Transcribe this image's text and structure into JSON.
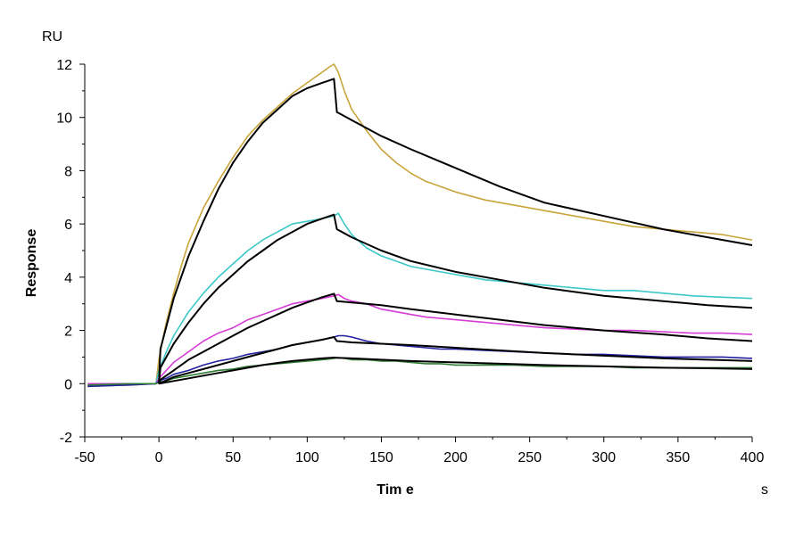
{
  "chart_data": {
    "type": "line",
    "xlabel": "Tim e",
    "ylabel": "Response",
    "x_unit": "s",
    "y_unit": "RU",
    "xlim": [
      -50,
      400
    ],
    "ylim": [
      -2,
      12
    ],
    "x_ticks": [
      -50,
      0,
      50,
      100,
      150,
      200,
      250,
      300,
      350,
      400
    ],
    "y_ticks": [
      -2,
      0,
      2,
      4,
      6,
      8,
      10,
      12
    ],
    "x_tick_labels": [
      "-50",
      "0",
      "50",
      "100",
      "150",
      "200",
      "250",
      "300",
      "350",
      "400"
    ],
    "y_tick_labels": [
      "-2",
      "0",
      "2",
      "4",
      "6",
      "8",
      "10",
      "12"
    ],
    "grid": false,
    "legend": "none",
    "colors": {
      "series_1": "#C8A43A",
      "series_2": "#3CC8C8",
      "series_3": "#D63CD6",
      "series_4": "#2020A0",
      "series_5": "#2E7D32",
      "fit": "#000000"
    },
    "series": [
      {
        "role": "measured",
        "color": "#C8A43A",
        "x": [
          -48,
          -20,
          -2,
          0,
          2,
          5,
          10,
          15,
          20,
          30,
          40,
          50,
          60,
          70,
          80,
          90,
          100,
          110,
          115,
          118,
          121,
          125,
          130,
          140,
          150,
          160,
          170,
          180,
          190,
          200,
          220,
          240,
          260,
          280,
          300,
          320,
          340,
          360,
          380,
          400
        ],
        "y": [
          -0.1,
          -0.05,
          0,
          0.9,
          1.5,
          2.3,
          3.4,
          4.4,
          5.3,
          6.6,
          7.6,
          8.5,
          9.3,
          9.9,
          10.4,
          10.9,
          11.3,
          11.7,
          11.9,
          12.0,
          11.7,
          11.0,
          10.3,
          9.5,
          8.8,
          8.3,
          7.9,
          7.6,
          7.4,
          7.2,
          6.9,
          6.7,
          6.5,
          6.3,
          6.1,
          5.9,
          5.8,
          5.7,
          5.6,
          5.4
        ]
      },
      {
        "role": "measured",
        "color": "#3CC8C8",
        "x": [
          -48,
          -20,
          -2,
          0,
          5,
          10,
          20,
          30,
          40,
          50,
          60,
          70,
          80,
          90,
          100,
          110,
          118,
          121,
          125,
          130,
          140,
          150,
          160,
          170,
          180,
          190,
          200,
          220,
          240,
          260,
          280,
          300,
          320,
          340,
          360,
          380,
          400
        ],
        "y": [
          -0.05,
          0,
          0,
          0.5,
          1.2,
          1.8,
          2.7,
          3.4,
          4.0,
          4.5,
          5.0,
          5.4,
          5.7,
          6.0,
          6.1,
          6.2,
          6.3,
          6.4,
          6.0,
          5.6,
          5.1,
          4.8,
          4.6,
          4.4,
          4.3,
          4.2,
          4.1,
          3.9,
          3.8,
          3.7,
          3.6,
          3.5,
          3.5,
          3.4,
          3.3,
          3.25,
          3.2
        ]
      },
      {
        "role": "measured",
        "color": "#D63CD6",
        "x": [
          -48,
          -20,
          -2,
          0,
          5,
          10,
          20,
          30,
          40,
          50,
          60,
          70,
          80,
          90,
          100,
          110,
          118,
          121,
          125,
          130,
          140,
          150,
          160,
          170,
          180,
          190,
          200,
          220,
          240,
          260,
          280,
          300,
          320,
          340,
          360,
          380,
          400
        ],
        "y": [
          0,
          0,
          0,
          0.2,
          0.5,
          0.8,
          1.2,
          1.6,
          1.9,
          2.1,
          2.4,
          2.6,
          2.8,
          3.0,
          3.1,
          3.2,
          3.3,
          3.35,
          3.2,
          3.1,
          3.0,
          2.8,
          2.7,
          2.6,
          2.5,
          2.45,
          2.4,
          2.3,
          2.2,
          2.1,
          2.05,
          2.0,
          2.0,
          1.95,
          1.9,
          1.9,
          1.85
        ]
      },
      {
        "role": "measured",
        "color": "#2020A0",
        "x": [
          -48,
          -20,
          -2,
          0,
          5,
          10,
          20,
          30,
          40,
          50,
          60,
          70,
          80,
          90,
          100,
          110,
          118,
          121,
          125,
          130,
          140,
          150,
          160,
          170,
          180,
          190,
          200,
          220,
          240,
          260,
          280,
          300,
          320,
          340,
          360,
          380,
          400
        ],
        "y": [
          -0.1,
          -0.05,
          0,
          0.1,
          0.2,
          0.35,
          0.5,
          0.7,
          0.85,
          0.95,
          1.1,
          1.2,
          1.3,
          1.45,
          1.55,
          1.65,
          1.75,
          1.8,
          1.8,
          1.75,
          1.6,
          1.5,
          1.45,
          1.4,
          1.35,
          1.3,
          1.3,
          1.25,
          1.2,
          1.15,
          1.1,
          1.1,
          1.05,
          1.0,
          1.0,
          1.0,
          0.95
        ]
      },
      {
        "role": "measured",
        "color": "#2E7D32",
        "x": [
          -48,
          -20,
          -2,
          0,
          5,
          10,
          20,
          30,
          40,
          50,
          60,
          70,
          80,
          90,
          100,
          110,
          118,
          121,
          125,
          130,
          140,
          150,
          160,
          170,
          180,
          190,
          200,
          220,
          240,
          260,
          280,
          300,
          320,
          340,
          360,
          380,
          400
        ],
        "y": [
          -0.05,
          0,
          0,
          0.05,
          0.1,
          0.2,
          0.3,
          0.4,
          0.5,
          0.55,
          0.65,
          0.7,
          0.75,
          0.8,
          0.85,
          0.9,
          0.95,
          0.98,
          0.95,
          0.9,
          0.9,
          0.85,
          0.85,
          0.8,
          0.75,
          0.75,
          0.7,
          0.7,
          0.7,
          0.65,
          0.65,
          0.65,
          0.6,
          0.6,
          0.6,
          0.6,
          0.6
        ]
      },
      {
        "role": "fit",
        "color": "#000000",
        "x": [
          0,
          1,
          10,
          20,
          30,
          40,
          50,
          60,
          70,
          80,
          90,
          100,
          110,
          118,
          120,
          130,
          150,
          170,
          200,
          230,
          260,
          300,
          340,
          370,
          400
        ],
        "y": [
          0,
          1.3,
          3.2,
          4.8,
          6.1,
          7.3,
          8.3,
          9.1,
          9.8,
          10.3,
          10.8,
          11.1,
          11.3,
          11.45,
          10.2,
          9.9,
          9.3,
          8.8,
          8.1,
          7.4,
          6.8,
          6.3,
          5.8,
          5.5,
          5.2
        ]
      },
      {
        "role": "fit",
        "color": "#000000",
        "x": [
          0,
          1,
          10,
          20,
          30,
          40,
          50,
          60,
          70,
          80,
          90,
          100,
          110,
          118,
          120,
          130,
          150,
          170,
          200,
          230,
          260,
          300,
          340,
          370,
          400
        ],
        "y": [
          0,
          0.6,
          1.5,
          2.3,
          3.0,
          3.6,
          4.1,
          4.6,
          5.0,
          5.4,
          5.7,
          6.0,
          6.2,
          6.35,
          5.8,
          5.5,
          5.0,
          4.6,
          4.2,
          3.9,
          3.6,
          3.3,
          3.1,
          2.95,
          2.85
        ]
      },
      {
        "role": "fit",
        "color": "#000000",
        "x": [
          0,
          1,
          10,
          20,
          30,
          40,
          50,
          60,
          70,
          80,
          90,
          100,
          110,
          118,
          120,
          130,
          150,
          170,
          200,
          230,
          260,
          300,
          340,
          370,
          400
        ],
        "y": [
          0,
          0.15,
          0.5,
          0.9,
          1.2,
          1.5,
          1.8,
          2.1,
          2.35,
          2.6,
          2.85,
          3.05,
          3.25,
          3.38,
          3.1,
          3.05,
          2.95,
          2.8,
          2.6,
          2.4,
          2.2,
          2.0,
          1.85,
          1.7,
          1.6
        ]
      },
      {
        "role": "fit",
        "color": "#000000",
        "x": [
          0,
          10,
          20,
          30,
          40,
          50,
          60,
          70,
          80,
          90,
          100,
          110,
          118,
          120,
          130,
          150,
          170,
          200,
          230,
          260,
          300,
          340,
          370,
          400
        ],
        "y": [
          0,
          0.25,
          0.4,
          0.55,
          0.7,
          0.85,
          1.0,
          1.15,
          1.3,
          1.45,
          1.55,
          1.65,
          1.75,
          1.6,
          1.55,
          1.5,
          1.45,
          1.35,
          1.25,
          1.15,
          1.05,
          0.95,
          0.9,
          0.85
        ]
      },
      {
        "role": "fit",
        "color": "#000000",
        "x": [
          0,
          10,
          20,
          30,
          40,
          50,
          60,
          70,
          80,
          90,
          100,
          110,
          118,
          120,
          130,
          150,
          170,
          200,
          230,
          260,
          300,
          340,
          370,
          400
        ],
        "y": [
          0,
          0.1,
          0.2,
          0.3,
          0.4,
          0.5,
          0.6,
          0.7,
          0.78,
          0.85,
          0.9,
          0.95,
          0.98,
          0.97,
          0.95,
          0.9,
          0.85,
          0.8,
          0.75,
          0.7,
          0.65,
          0.6,
          0.58,
          0.55
        ]
      }
    ]
  }
}
